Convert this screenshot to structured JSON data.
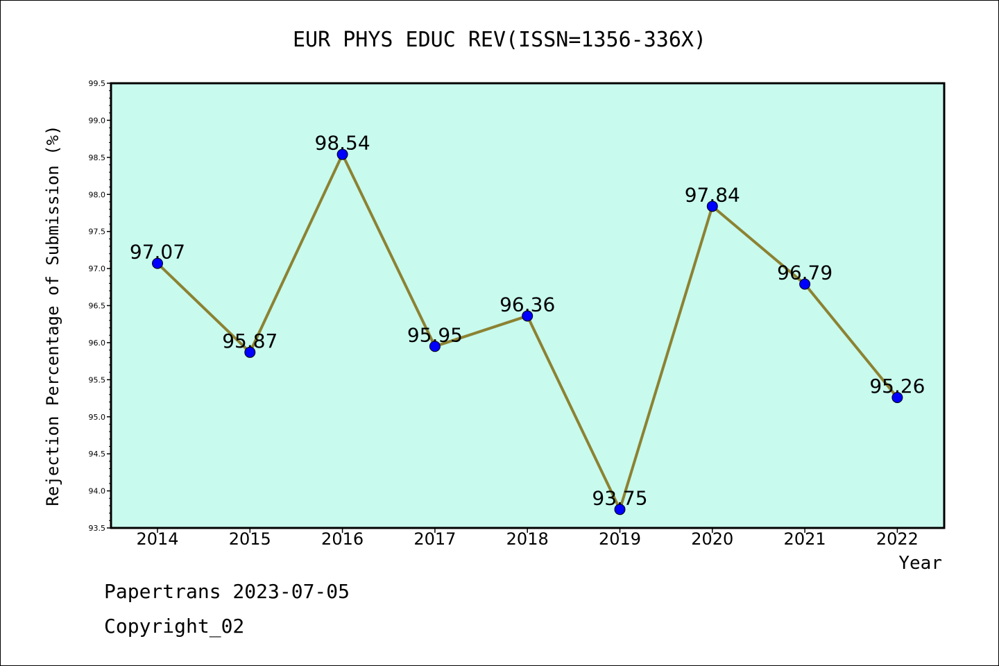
{
  "chart_data": {
    "type": "line",
    "title": "EUR PHYS EDUC REV(ISSN=1356-336X)",
    "xlabel": "Year",
    "ylabel": "Rejection Percentage of Submission (%)",
    "categories": [
      "2014",
      "2015",
      "2016",
      "2017",
      "2018",
      "2019",
      "2020",
      "2021",
      "2022"
    ],
    "values": [
      97.07,
      95.87,
      98.54,
      95.95,
      96.36,
      93.75,
      97.84,
      96.79,
      95.26
    ],
    "data_labels": [
      "97.07",
      "95.87",
      "98.54",
      "95.95",
      "96.36",
      "93.75",
      "97.84",
      "96.79",
      "95.26"
    ],
    "ylim": [
      93.5,
      99.5
    ],
    "yticks": [
      "93.5",
      "94.0",
      "94.5",
      "95.0",
      "95.5",
      "96.0",
      "96.5",
      "97.0",
      "97.5",
      "98.0",
      "98.5",
      "99.0",
      "99.5"
    ],
    "grid": false,
    "colors": {
      "plot_background": "#c8faee",
      "line": "#8c8232",
      "marker": "#0000ff"
    }
  },
  "footer": {
    "line1": "Papertrans 2023-07-05",
    "line2": "Copyright_02"
  }
}
